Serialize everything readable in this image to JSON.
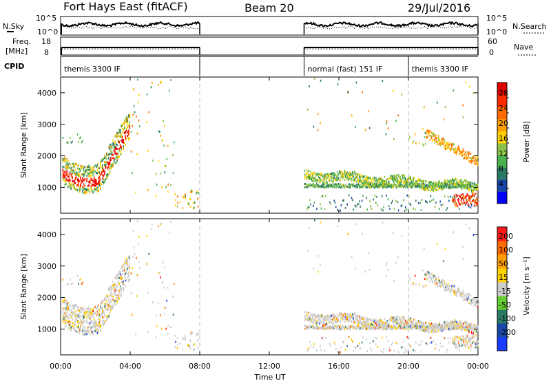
{
  "header": {
    "station": "Fort Hays East (fitACF)",
    "beam": "Beam 20",
    "date": "29/Jul/2016"
  },
  "noise_panel": {
    "left_label": "N.Sky",
    "right_label": "N.Search",
    "left_ticks": [
      "10^5",
      "10^0"
    ],
    "right_ticks": [
      "10^5",
      "10^0"
    ]
  },
  "freq_panel": {
    "left_label_top": "Freq.",
    "left_label_bottom": "[MHz]",
    "right_label": "Nave",
    "left_ticks": [
      "18",
      "8"
    ],
    "right_ticks": [
      "60",
      "0"
    ]
  },
  "cpid": {
    "label": "CPID",
    "segments": [
      {
        "name": "themis 3300 IF",
        "start_h": 0.0,
        "end_h": 8.0
      },
      {
        "name": "normal (fast) 151 IF",
        "start_h": 14.0,
        "end_h": 20.0
      },
      {
        "name": "themis 3300 IF",
        "start_h": 20.0,
        "end_h": 24.0
      }
    ]
  },
  "x_axis": {
    "label": "Time UT",
    "ticks": [
      "00:00",
      "04:00",
      "08:00",
      "12:00",
      "16:00",
      "20:00",
      "00:00"
    ]
  },
  "power_panel": {
    "ylabel": "Slant Range [km]",
    "yticks": [
      "1000",
      "2000",
      "3000",
      "4000"
    ],
    "colorbar_label": "Power [dB]",
    "colorbar_ticks": [
      "28",
      "24",
      "20",
      "16",
      "12",
      "8",
      "4"
    ],
    "colors": [
      "#0000ff",
      "#1a48a8",
      "#2b7a66",
      "#4caf50",
      "#8bc34a",
      "#ffd000",
      "#ff9f00",
      "#ff6a00",
      "#ff2a00",
      "#e00000"
    ]
  },
  "velocity_panel": {
    "ylabel": "Slant Range [km]",
    "yticks": [
      "1000",
      "2000",
      "3000",
      "4000"
    ],
    "colorbar_label": "Velocity [m s⁻¹]",
    "colorbar_ticks": [
      "200",
      "100",
      "50",
      "15",
      "-15",
      "-50",
      "-100",
      "-200"
    ],
    "colors": [
      "#1a3cff",
      "#1a48a8",
      "#2b7a66",
      "#66cc33",
      "#cccccc",
      "#ffd000",
      "#ff9f00",
      "#ff6a00",
      "#ff1a1a"
    ]
  },
  "chart_data": {
    "type": "heatmap",
    "title": "Fort Hays East (fitACF)",
    "xlabel": "Time UT",
    "ylabel": "Slant Range [km]",
    "xlim_hours": [
      0,
      24
    ],
    "ylim_km": [
      180,
      4500
    ],
    "data_gap_hours": [
      8,
      14
    ],
    "series": [
      {
        "name": "Power [dB]",
        "range": [
          0,
          30
        ]
      },
      {
        "name": "Velocity [m s⁻¹]",
        "range": [
          -200,
          200
        ]
      }
    ]
  }
}
